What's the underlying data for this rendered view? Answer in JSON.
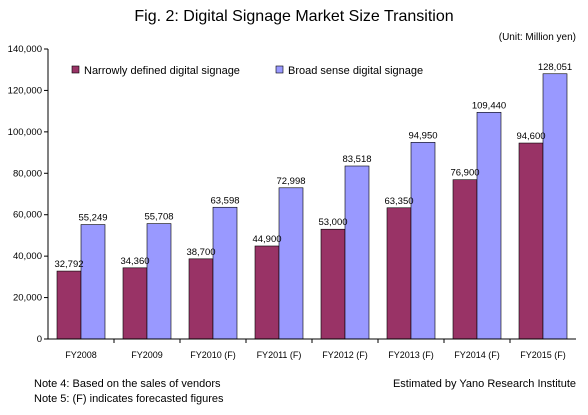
{
  "chart_data": {
    "type": "bar",
    "title": "Fig. 2: Digital Signage Market Size Transition",
    "unit": "(Unit: Million yen)",
    "categories": [
      "FY2008",
      "FY2009",
      "FY2010 (F)",
      "FY2011 (F)",
      "FY2012 (F)",
      "FY2013 (F)",
      "FY2014 (F)",
      "FY2015 (F)"
    ],
    "series": [
      {
        "name": "Narrowly defined digital signage",
        "color": "#993366",
        "values": [
          32792,
          34360,
          38700,
          44900,
          53000,
          63350,
          76900,
          94600
        ],
        "labels": [
          "32,792",
          "34,360",
          "38,700",
          "44,900",
          "53,000",
          "63,350",
          "76,900",
          "94,600"
        ]
      },
      {
        "name": "Broad sense digital signage",
        "color": "#9999ff",
        "values": [
          55249,
          55708,
          63598,
          72998,
          83518,
          94950,
          109440,
          128051
        ],
        "labels": [
          "55,249",
          "55,708",
          "63,598",
          "72,998",
          "83,518",
          "94,950",
          "109,440",
          "128,051"
        ]
      }
    ],
    "ylim": [
      0,
      140000
    ],
    "yticks": [
      0,
      20000,
      40000,
      60000,
      80000,
      100000,
      120000,
      140000
    ],
    "ytick_labels": [
      "0",
      "20,000",
      "40,000",
      "60,000",
      "80,000",
      "100,000",
      "120,000",
      "140,000"
    ],
    "grid": false,
    "legend_position": "top-left"
  },
  "notes": {
    "note4": "Note 4: Based on the sales of vendors",
    "note5": "Note 5: (F) indicates forecasted figures",
    "source": "Estimated by Yano Research Institute"
  }
}
